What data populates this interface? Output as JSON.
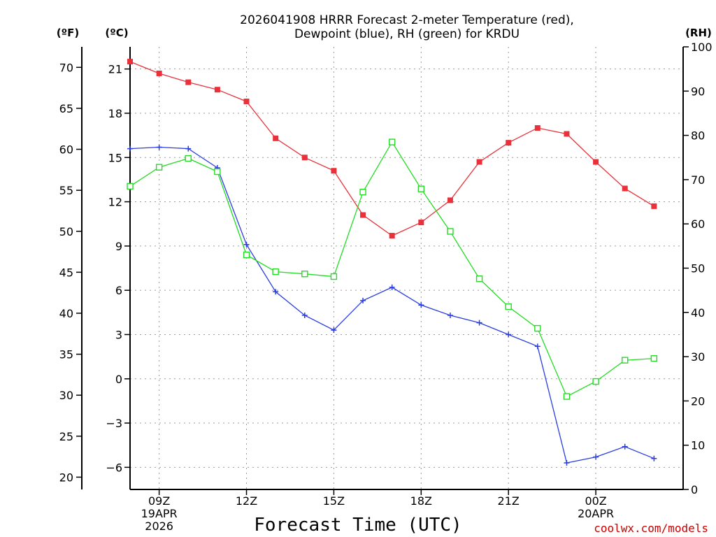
{
  "chart_data": {
    "type": "line",
    "title_line1": "2026041908 HRRR Forecast 2-meter Temperature (red),",
    "title_line2": "Dewpoint (blue), RH (green) for KRDU",
    "xlabel": "Forecast Time (UTC)",
    "credit": "coolwx.com/models",
    "unit_labels": {
      "f": "(ºF)",
      "c": "(ºC)",
      "rh": "(RH)"
    },
    "x_hours": [
      0,
      1,
      2,
      3,
      4,
      5,
      6,
      7,
      8,
      9,
      10,
      11,
      12,
      13,
      14,
      15,
      16,
      17,
      18,
      19
    ],
    "x_ticks": [
      {
        "hour": 1,
        "lines": [
          "09Z",
          "19APR",
          "2026"
        ]
      },
      {
        "hour": 4,
        "lines": [
          "12Z"
        ]
      },
      {
        "hour": 7,
        "lines": [
          "15Z"
        ]
      },
      {
        "hour": 10,
        "lines": [
          "18Z"
        ]
      },
      {
        "hour": 13,
        "lines": [
          "21Z"
        ]
      },
      {
        "hour": 16,
        "lines": [
          "00Z",
          "20APR"
        ]
      }
    ],
    "y_c": {
      "min": -7.5,
      "max": 22.5,
      "ticks": [
        -6,
        -3,
        0,
        3,
        6,
        9,
        12,
        15,
        18,
        21
      ]
    },
    "y_f": {
      "ticks": [
        20,
        25,
        30,
        35,
        40,
        45,
        50,
        55,
        60,
        65,
        70
      ]
    },
    "y_rh": {
      "min": 0,
      "max": 100,
      "ticks": [
        0,
        10,
        20,
        30,
        40,
        50,
        60,
        70,
        80,
        90,
        100
      ]
    },
    "series": [
      {
        "name": "Temperature",
        "units": "C",
        "color": "#e8313a",
        "marker": "filled-square",
        "values": [
          21.5,
          20.7,
          20.1,
          19.6,
          18.8,
          16.3,
          15.0,
          14.1,
          11.1,
          9.7,
          10.6,
          12.1,
          14.7,
          16.0,
          17.0,
          16.6,
          14.7,
          12.9,
          11.7
        ]
      },
      {
        "name": "Dewpoint",
        "units": "C",
        "color": "#2a3de0",
        "marker": "plus",
        "values": [
          15.6,
          15.7,
          15.6,
          14.3,
          9.1,
          5.9,
          4.3,
          3.3,
          5.3,
          6.2,
          5.0,
          4.3,
          3.8,
          3.0,
          2.2,
          -5.7,
          -5.3,
          -4.6,
          -5.4
        ]
      },
      {
        "name": "RH",
        "units": "%",
        "color": "#22dd22",
        "marker": "open-square",
        "values": [
          68.5,
          72.8,
          74.8,
          71.8,
          53.0,
          49.2,
          48.7,
          48.1,
          67.2,
          78.5,
          67.9,
          58.3,
          47.6,
          41.3,
          36.4,
          21.0,
          24.4,
          29.2,
          29.6
        ]
      }
    ]
  }
}
